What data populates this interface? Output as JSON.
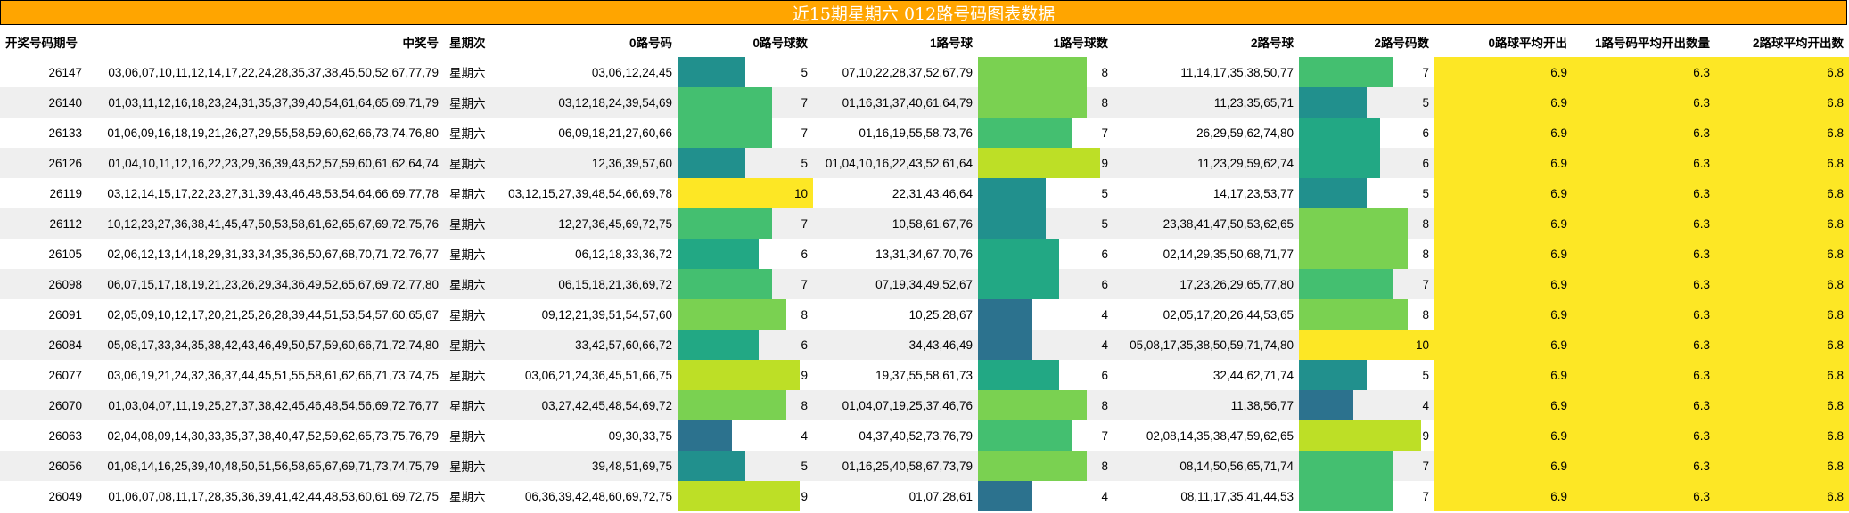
{
  "title": "近15期星期六 012路号码图表数据",
  "headers": [
    "开奖号码期号",
    "中奖号",
    "星期次",
    "0路号码",
    "0路号球数",
    "1路号球",
    "1路号球数",
    "2路号球",
    "2路号码数",
    "0路球平均开出",
    "1路号码平均开出数量",
    "2路球平均开出数"
  ],
  "bar_max": 10,
  "colors": {
    "title_bg": "#ffa500",
    "avg_bg": "#fde725",
    "row_alt": "#efefef",
    "bar_scale": {
      "4": "#2c728e",
      "5": "#21908d",
      "6": "#22a884",
      "7": "#44bf70",
      "8": "#7ad151",
      "9": "#bddf26",
      "10": "#fde725"
    }
  },
  "rows": [
    {
      "issue": "26147",
      "numbers": "03,06,07,10,11,12,14,17,22,24,28,35,37,38,45,50,52,67,77,79",
      "weekday": "星期六",
      "r0": "03,06,12,24,45",
      "r0n": 5,
      "r1": "07,10,22,28,37,52,67,79",
      "r1n": 8,
      "r2": "11,14,17,35,38,50,77",
      "r2n": 7,
      "avg0": "6.9",
      "avg1": "6.3",
      "avg2": "6.8"
    },
    {
      "issue": "26140",
      "numbers": "01,03,11,12,16,18,23,24,31,35,37,39,40,54,61,64,65,69,71,79",
      "weekday": "星期六",
      "r0": "03,12,18,24,39,54,69",
      "r0n": 7,
      "r1": "01,16,31,37,40,61,64,79",
      "r1n": 8,
      "r2": "11,23,35,65,71",
      "r2n": 5,
      "avg0": "6.9",
      "avg1": "6.3",
      "avg2": "6.8"
    },
    {
      "issue": "26133",
      "numbers": "01,06,09,16,18,19,21,26,27,29,55,58,59,60,62,66,73,74,76,80",
      "weekday": "星期六",
      "r0": "06,09,18,21,27,60,66",
      "r0n": 7,
      "r1": "01,16,19,55,58,73,76",
      "r1n": 7,
      "r2": "26,29,59,62,74,80",
      "r2n": 6,
      "avg0": "6.9",
      "avg1": "6.3",
      "avg2": "6.8"
    },
    {
      "issue": "26126",
      "numbers": "01,04,10,11,12,16,22,23,29,36,39,43,52,57,59,60,61,62,64,74",
      "weekday": "星期六",
      "r0": "12,36,39,57,60",
      "r0n": 5,
      "r1": "01,04,10,16,22,43,52,61,64",
      "r1n": 9,
      "r2": "11,23,29,59,62,74",
      "r2n": 6,
      "avg0": "6.9",
      "avg1": "6.3",
      "avg2": "6.8"
    },
    {
      "issue": "26119",
      "numbers": "03,12,14,15,17,22,23,27,31,39,43,46,48,53,54,64,66,69,77,78",
      "weekday": "星期六",
      "r0": "03,12,15,27,39,48,54,66,69,78",
      "r0n": 10,
      "r1": "22,31,43,46,64",
      "r1n": 5,
      "r2": "14,17,23,53,77",
      "r2n": 5,
      "avg0": "6.9",
      "avg1": "6.3",
      "avg2": "6.8"
    },
    {
      "issue": "26112",
      "numbers": "10,12,23,27,36,38,41,45,47,50,53,58,61,62,65,67,69,72,75,76",
      "weekday": "星期六",
      "r0": "12,27,36,45,69,72,75",
      "r0n": 7,
      "r1": "10,58,61,67,76",
      "r1n": 5,
      "r2": "23,38,41,47,50,53,62,65",
      "r2n": 8,
      "avg0": "6.9",
      "avg1": "6.3",
      "avg2": "6.8"
    },
    {
      "issue": "26105",
      "numbers": "02,06,12,13,14,18,29,31,33,34,35,36,50,67,68,70,71,72,76,77",
      "weekday": "星期六",
      "r0": "06,12,18,33,36,72",
      "r0n": 6,
      "r1": "13,31,34,67,70,76",
      "r1n": 6,
      "r2": "02,14,29,35,50,68,71,77",
      "r2n": 8,
      "avg0": "6.9",
      "avg1": "6.3",
      "avg2": "6.8"
    },
    {
      "issue": "26098",
      "numbers": "06,07,15,17,18,19,21,23,26,29,34,36,49,52,65,67,69,72,77,80",
      "weekday": "星期六",
      "r0": "06,15,18,21,36,69,72",
      "r0n": 7,
      "r1": "07,19,34,49,52,67",
      "r1n": 6,
      "r2": "17,23,26,29,65,77,80",
      "r2n": 7,
      "avg0": "6.9",
      "avg1": "6.3",
      "avg2": "6.8"
    },
    {
      "issue": "26091",
      "numbers": "02,05,09,10,12,17,20,21,25,26,28,39,44,51,53,54,57,60,65,67",
      "weekday": "星期六",
      "r0": "09,12,21,39,51,54,57,60",
      "r0n": 8,
      "r1": "10,25,28,67",
      "r1n": 4,
      "r2": "02,05,17,20,26,44,53,65",
      "r2n": 8,
      "avg0": "6.9",
      "avg1": "6.3",
      "avg2": "6.8"
    },
    {
      "issue": "26084",
      "numbers": "05,08,17,33,34,35,38,42,43,46,49,50,57,59,60,66,71,72,74,80",
      "weekday": "星期六",
      "r0": "33,42,57,60,66,72",
      "r0n": 6,
      "r1": "34,43,46,49",
      "r1n": 4,
      "r2": "05,08,17,35,38,50,59,71,74,80",
      "r2n": 10,
      "avg0": "6.9",
      "avg1": "6.3",
      "avg2": "6.8"
    },
    {
      "issue": "26077",
      "numbers": "03,06,19,21,24,32,36,37,44,45,51,55,58,61,62,66,71,73,74,75",
      "weekday": "星期六",
      "r0": "03,06,21,24,36,45,51,66,75",
      "r0n": 9,
      "r1": "19,37,55,58,61,73",
      "r1n": 6,
      "r2": "32,44,62,71,74",
      "r2n": 5,
      "avg0": "6.9",
      "avg1": "6.3",
      "avg2": "6.8"
    },
    {
      "issue": "26070",
      "numbers": "01,03,04,07,11,19,25,27,37,38,42,45,46,48,54,56,69,72,76,77",
      "weekday": "星期六",
      "r0": "03,27,42,45,48,54,69,72",
      "r0n": 8,
      "r1": "01,04,07,19,25,37,46,76",
      "r1n": 8,
      "r2": "11,38,56,77",
      "r2n": 4,
      "avg0": "6.9",
      "avg1": "6.3",
      "avg2": "6.8"
    },
    {
      "issue": "26063",
      "numbers": "02,04,08,09,14,30,33,35,37,38,40,47,52,59,62,65,73,75,76,79",
      "weekday": "星期六",
      "r0": "09,30,33,75",
      "r0n": 4,
      "r1": "04,37,40,52,73,76,79",
      "r1n": 7,
      "r2": "02,08,14,35,38,47,59,62,65",
      "r2n": 9,
      "avg0": "6.9",
      "avg1": "6.3",
      "avg2": "6.8"
    },
    {
      "issue": "26056",
      "numbers": "01,08,14,16,25,39,40,48,50,51,56,58,65,67,69,71,73,74,75,79",
      "weekday": "星期六",
      "r0": "39,48,51,69,75",
      "r0n": 5,
      "r1": "01,16,25,40,58,67,73,79",
      "r1n": 8,
      "r2": "08,14,50,56,65,71,74",
      "r2n": 7,
      "avg0": "6.9",
      "avg1": "6.3",
      "avg2": "6.8"
    },
    {
      "issue": "26049",
      "numbers": "01,06,07,08,11,17,28,35,36,39,41,42,44,48,53,60,61,69,72,75",
      "weekday": "星期六",
      "r0": "06,36,39,42,48,60,69,72,75",
      "r0n": 9,
      "r1": "01,07,28,61",
      "r1n": 4,
      "r2": "08,11,17,35,41,44,53",
      "r2n": 7,
      "avg0": "6.9",
      "avg1": "6.3",
      "avg2": "6.8"
    }
  ]
}
